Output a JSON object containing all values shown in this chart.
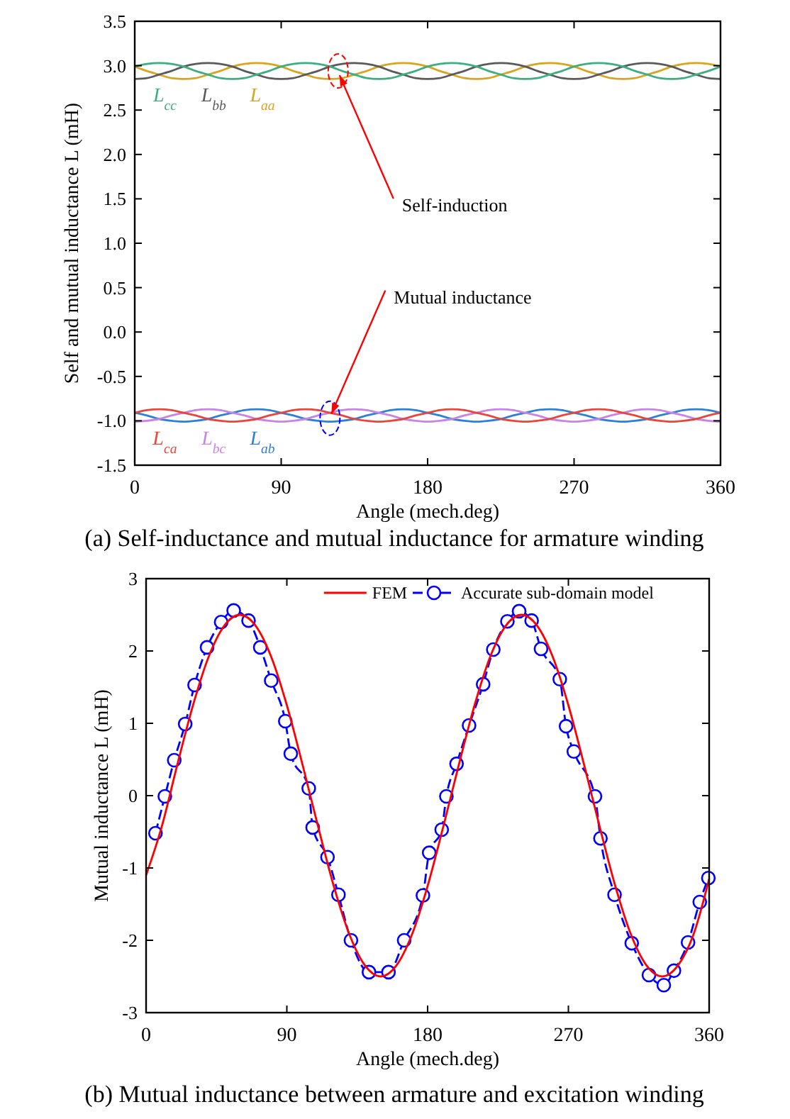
{
  "chart_data": [
    {
      "type": "line",
      "xlabel": "Angle (mech.deg)",
      "ylabel": "Self and mutual inductance L (mH)",
      "xlim": [
        0,
        360
      ],
      "xticks": [
        0,
        90,
        180,
        270,
        360
      ],
      "ylim": [
        -1.5,
        3.5
      ],
      "yticks": [
        3.5,
        {
          "value": 3,
          "label": "3.0"
        },
        2.5,
        {
          "value": 2,
          "label": "2.0"
        },
        1.5,
        {
          "value": 1,
          "label": "1.0"
        },
        0.5,
        {
          "value": 0,
          "label": "0.0"
        },
        -0.5,
        {
          "value": -1,
          "label": "-1.0"
        },
        -1.5
      ],
      "x": [
        0,
        7.5,
        15,
        22.5,
        30,
        37.5,
        45,
        52.5,
        60,
        67.5,
        75,
        82.5,
        90,
        97.5,
        105,
        112.5,
        120,
        127.5,
        135,
        142.5,
        150,
        157.5,
        165,
        172.5,
        180,
        187.5,
        195,
        202.5,
        210,
        217.5,
        225,
        232.5,
        240,
        247.5,
        255,
        262.5,
        270,
        277.5,
        285,
        292.5,
        300,
        307.5,
        315,
        322.5,
        330,
        337.5,
        345,
        352.5,
        360
      ],
      "series": [
        {
          "name": "L$_{cc}$",
          "color": "#3daf7e",
          "values": [
            2.99,
            3.02,
            3.03,
            3.02,
            2.99,
            2.94,
            2.9,
            2.86,
            2.85,
            2.86,
            2.9,
            2.94,
            2.99,
            3.02,
            3.03,
            3.02,
            2.99,
            2.94,
            2.9,
            2.86,
            2.85,
            2.86,
            2.9,
            2.94,
            2.99,
            3.02,
            3.03,
            3.02,
            2.99,
            2.94,
            2.9,
            2.86,
            2.85,
            2.86,
            2.9,
            2.94,
            2.99,
            3.02,
            3.03,
            3.02,
            2.99,
            2.94,
            2.9,
            2.86,
            2.85,
            2.86,
            2.9,
            2.94,
            2.99
          ]
        },
        {
          "name": "L$_{bb}$",
          "color": "#5a5a5a",
          "values": [
            2.85,
            2.86,
            2.9,
            2.94,
            2.99,
            3.02,
            3.03,
            3.02,
            2.99,
            2.94,
            2.9,
            2.86,
            2.85,
            2.86,
            2.9,
            2.94,
            2.99,
            3.02,
            3.03,
            3.02,
            2.99,
            2.94,
            2.9,
            2.86,
            2.85,
            2.86,
            2.9,
            2.94,
            2.99,
            3.02,
            3.03,
            3.02,
            2.99,
            2.94,
            2.9,
            2.86,
            2.85,
            2.86,
            2.9,
            2.94,
            2.99,
            3.02,
            3.03,
            3.02,
            2.99,
            2.94,
            2.9,
            2.86,
            2.85
          ]
        },
        {
          "name": "L$_{aa}$",
          "color": "#d9a520",
          "values": [
            2.99,
            2.94,
            2.9,
            2.86,
            2.85,
            2.86,
            2.9,
            2.94,
            2.99,
            3.02,
            3.03,
            3.02,
            2.99,
            2.94,
            2.9,
            2.86,
            2.85,
            2.86,
            2.9,
            2.94,
            2.99,
            3.02,
            3.03,
            3.02,
            2.99,
            2.94,
            2.9,
            2.86,
            2.85,
            2.86,
            2.9,
            2.94,
            2.99,
            3.02,
            3.03,
            3.02,
            2.99,
            2.94,
            2.9,
            2.86,
            2.85,
            2.86,
            2.9,
            2.94,
            2.99,
            3.02,
            3.03,
            3.02,
            2.99
          ]
        },
        {
          "name": "L$_{ca}$",
          "color": "#e8453c",
          "values": [
            -0.91,
            -0.88,
            -0.87,
            -0.88,
            -0.91,
            -0.94,
            -0.98,
            -1.0,
            -1.01,
            -1.0,
            -0.98,
            -0.94,
            -0.91,
            -0.88,
            -0.87,
            -0.88,
            -0.91,
            -0.94,
            -0.98,
            -1.0,
            -1.01,
            -1.0,
            -0.98,
            -0.94,
            -0.91,
            -0.88,
            -0.87,
            -0.88,
            -0.91,
            -0.94,
            -0.98,
            -1.0,
            -1.01,
            -1.0,
            -0.98,
            -0.94,
            -0.91,
            -0.88,
            -0.87,
            -0.88,
            -0.91,
            -0.94,
            -0.98,
            -1.0,
            -1.01,
            -1.0,
            -0.98,
            -0.94,
            -0.91
          ]
        },
        {
          "name": "L$_{bc}$",
          "color": "#c784e3",
          "values": [
            -1.01,
            -1.0,
            -0.98,
            -0.94,
            -0.91,
            -0.88,
            -0.87,
            -0.88,
            -0.91,
            -0.94,
            -0.98,
            -1.0,
            -1.01,
            -1.0,
            -0.98,
            -0.94,
            -0.91,
            -0.88,
            -0.87,
            -0.88,
            -0.91,
            -0.94,
            -0.98,
            -1.0,
            -1.01,
            -1.0,
            -0.98,
            -0.94,
            -0.91,
            -0.88,
            -0.87,
            -0.88,
            -0.91,
            -0.94,
            -0.98,
            -1.0,
            -1.01,
            -1.0,
            -0.98,
            -0.94,
            -0.91,
            -0.88,
            -0.87,
            -0.88,
            -0.91,
            -0.94,
            -0.98,
            -1.0,
            -1.01
          ]
        },
        {
          "name": "L$_{ab}$",
          "color": "#2f7fd6",
          "values": [
            -0.91,
            -0.94,
            -0.98,
            -1.0,
            -1.01,
            -1.0,
            -0.98,
            -0.94,
            -0.91,
            -0.88,
            -0.87,
            -0.88,
            -0.91,
            -0.94,
            -0.98,
            -1.0,
            -1.01,
            -1.0,
            -0.98,
            -0.94,
            -0.91,
            -0.88,
            -0.87,
            -0.88,
            -0.91,
            -0.94,
            -0.98,
            -1.0,
            -1.01,
            -1.0,
            -0.98,
            -0.94,
            -0.91,
            -0.88,
            -0.87,
            -0.88,
            -0.91,
            -0.94,
            -0.98,
            -1.0,
            -1.01,
            -1.0,
            -0.98,
            -0.94,
            -0.91,
            -0.88,
            -0.87,
            -0.88,
            -0.91
          ]
        }
      ],
      "annotations": [
        {
          "text": "Self-induction",
          "x": 125,
          "y": 2.94
        },
        {
          "text": "Mutual inductance",
          "x": 120,
          "y": -0.97
        },
        "(a) Self-inductance and mutual inductance for armature winding"
      ]
    },
    {
      "type": "line",
      "xlabel": "Angle (mech.deg)",
      "ylabel": "Mutual inductance L (mH)",
      "xlim": [
        0,
        360
      ],
      "xticks": [
        0,
        90,
        180,
        270,
        360
      ],
      "ylim": [
        -3,
        3
      ],
      "yticks": [
        -3,
        -2,
        -1,
        0,
        1,
        2,
        3
      ],
      "legend": "top right",
      "series": [
        {
          "name": "FEM",
          "color": "#ff0000",
          "marker": "none",
          "line_style": "solid",
          "x": [
            0,
            10,
            20,
            30,
            40,
            50,
            60,
            70,
            80,
            90,
            100,
            110,
            120,
            130,
            140,
            150,
            160,
            170,
            180,
            190,
            200,
            210,
            220,
            230,
            240,
            250,
            260,
            270,
            280,
            290,
            300,
            310,
            320,
            330,
            340,
            350,
            360
          ],
          "values": [
            -1.1,
            -0.43,
            0.43,
            1.25,
            1.92,
            2.35,
            2.5,
            2.35,
            1.92,
            1.25,
            0.43,
            -0.43,
            -1.25,
            -1.92,
            -2.35,
            -2.5,
            -2.35,
            -1.92,
            -1.25,
            -0.43,
            0.43,
            1.25,
            1.92,
            2.35,
            2.5,
            2.35,
            1.92,
            1.25,
            0.43,
            -0.43,
            -1.25,
            -1.92,
            -2.35,
            -2.5,
            -2.35,
            -1.92,
            -1.15
          ]
        },
        {
          "name": "Accurate sub-domain model",
          "color": "#0000ff",
          "marker": "circle",
          "line_style": "dashed",
          "x": [
            6,
            12,
            18,
            25,
            31,
            39,
            48,
            56,
            65.5,
            73,
            80,
            89,
            92.5,
            104,
            106.5,
            116,
            123,
            131,
            142.5,
            155,
            165,
            177,
            181,
            189,
            192,
            198.5,
            206.5,
            215.5,
            222,
            231,
            238.5,
            246.5,
            252.5,
            264.5,
            268.5,
            273.5,
            287,
            290.5,
            299.5,
            310.5,
            321.5,
            331,
            337.5,
            346.5,
            354,
            359.5
          ],
          "values": [
            -0.52,
            -0.01,
            0.49,
            0.99,
            1.53,
            2.05,
            2.4,
            2.56,
            2.42,
            2.05,
            1.59,
            1.03,
            0.58,
            0.1,
            -0.44,
            -0.85,
            -1.37,
            -2.0,
            -2.44,
            -2.44,
            -2.0,
            -1.38,
            -0.79,
            -0.47,
            -0.01,
            0.44,
            0.97,
            1.54,
            2.02,
            2.41,
            2.55,
            2.42,
            2.03,
            1.61,
            0.96,
            0.61,
            -0.01,
            -0.59,
            -1.37,
            -2.04,
            -2.48,
            -2.62,
            -2.42,
            -2.03,
            -1.47,
            -1.14
          ]
        }
      ],
      "annotations": [
        "(b) Mutual inductance between armature and excitation winding"
      ]
    }
  ]
}
